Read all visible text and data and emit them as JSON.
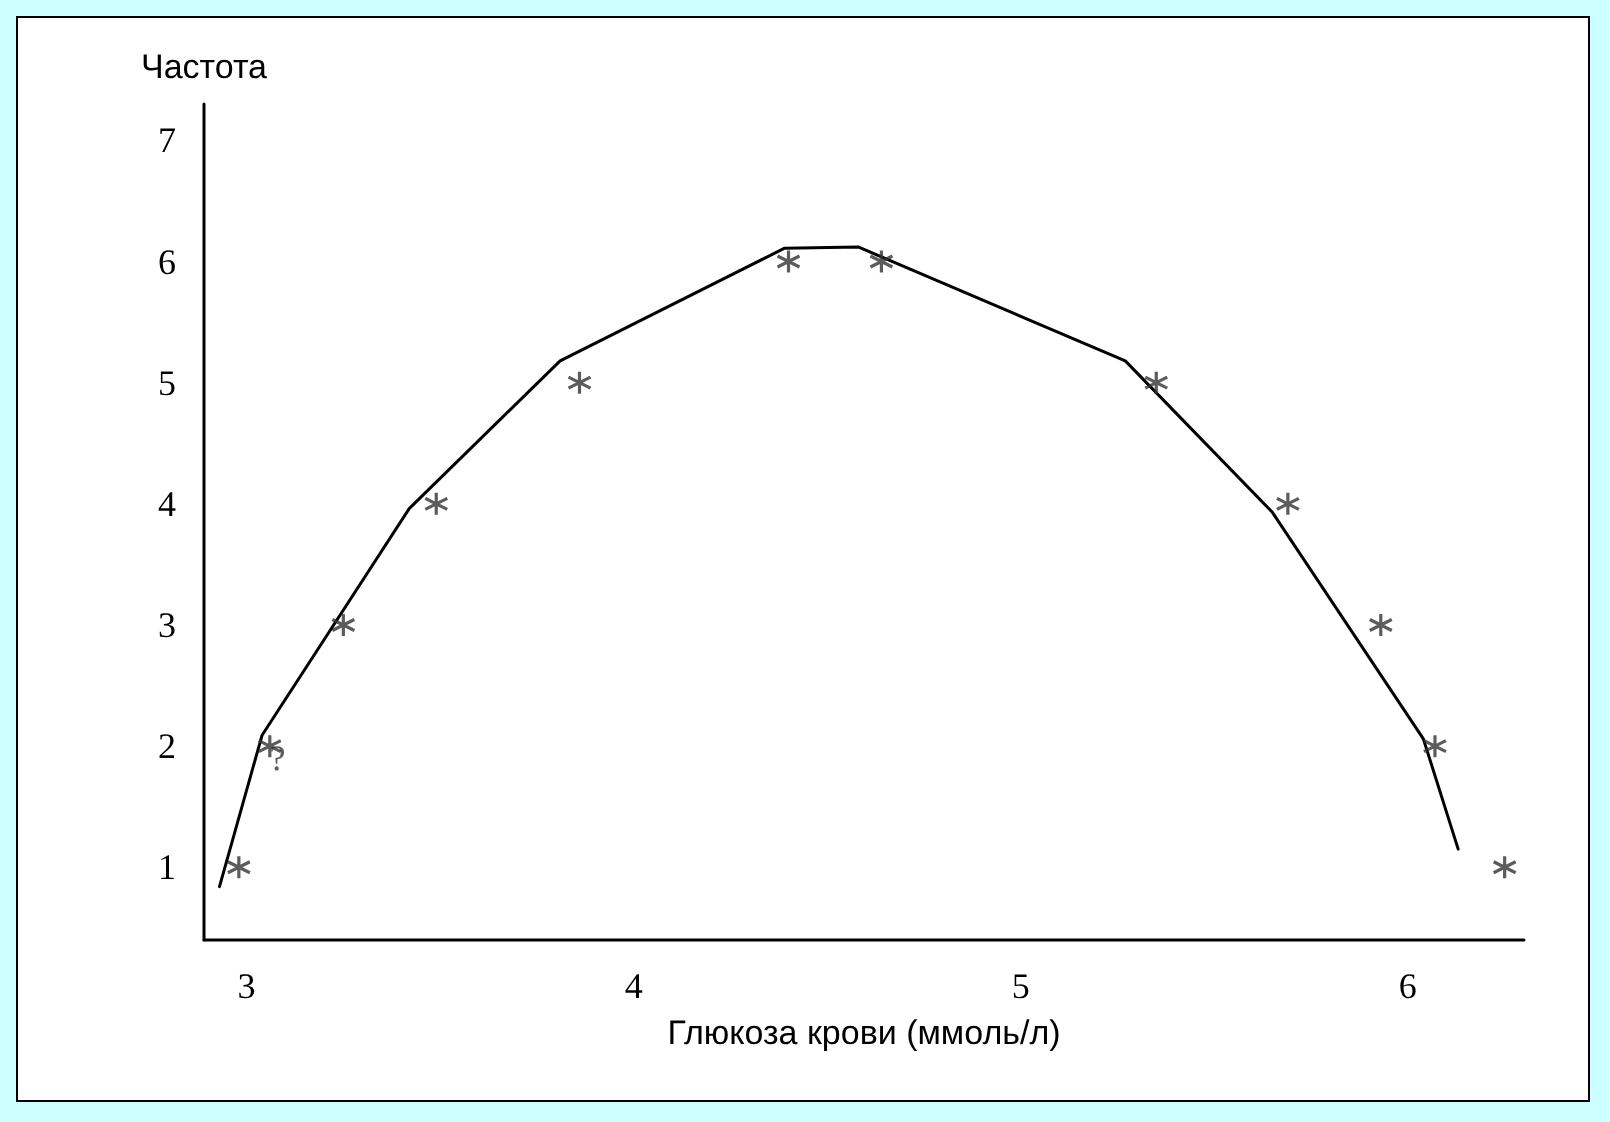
{
  "chart_data": {
    "type": "line",
    "xlabel": "Глюкоза крови (ммоль/л)",
    "ylabel": "Частота",
    "xlim": [
      2.89,
      6.3
    ],
    "xticks": [
      3,
      4,
      5,
      6
    ],
    "ylim": [
      0.4,
      7.3
    ],
    "yticks": [
      1,
      2,
      3,
      4,
      5,
      6,
      7
    ],
    "grid": false,
    "series": [
      {
        "color": "#000000",
        "marker": "none",
        "line_style": "solid",
        "x": [
          2.93,
          3.04,
          3.42,
          3.81,
          4.39,
          4.58,
          5.27,
          5.65,
          6.04,
          6.13
        ],
        "values": [
          0.84,
          2.09,
          3.96,
          5.18,
          6.11,
          6.12,
          5.18,
          3.93,
          2.06,
          1.15
        ]
      },
      {
        "type": "scatter",
        "color": "#333333",
        "marker": "cross",
        "x": [
          2.98,
          3.06,
          3.25,
          3.49,
          3.86,
          4.4,
          4.64,
          5.35,
          5.69,
          5.93,
          6.07,
          6.25
        ],
        "values": [
          1,
          2,
          3,
          4,
          5,
          6,
          6,
          5,
          4,
          3,
          2,
          1
        ]
      }
    ],
    "annotations": [
      {
        "text": "?",
        "x": 3.08,
        "y": 1.9
      }
    ]
  }
}
